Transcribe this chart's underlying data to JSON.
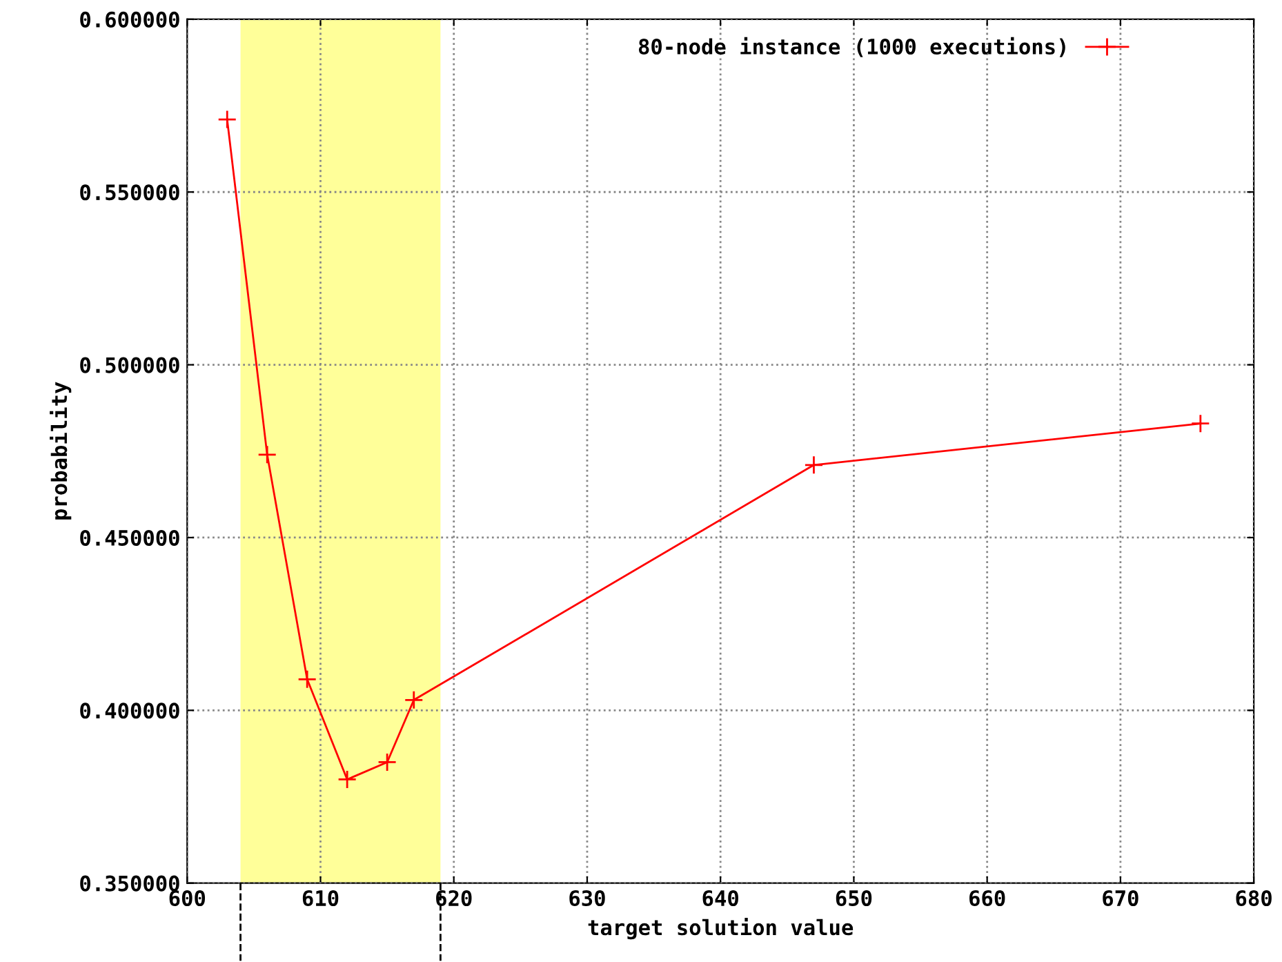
{
  "chart_data": {
    "type": "line",
    "xlabel": "target solution value",
    "ylabel": "probability",
    "series": [
      {
        "name": "80-node instance (1000 executions)",
        "color": "#ff0000",
        "x": [
          603,
          606,
          609,
          612,
          615,
          617,
          647,
          676
        ],
        "values": [
          0.571,
          0.474,
          0.409,
          0.38,
          0.385,
          0.403,
          0.471,
          0.483
        ]
      }
    ],
    "xlim": [
      600,
      680
    ],
    "xticks": [
      600,
      610,
      620,
      630,
      640,
      650,
      660,
      670,
      680
    ],
    "ylim": [
      0.35,
      0.6
    ],
    "yticks": [
      {
        "value": 0.35,
        "label": "0.350000"
      },
      {
        "value": 0.4,
        "label": "0.400000"
      },
      {
        "value": 0.45,
        "label": "0.450000"
      },
      {
        "value": 0.5,
        "label": "0.500000"
      },
      {
        "value": 0.55,
        "label": "0.550000"
      },
      {
        "value": 0.6,
        "label": "0.600000"
      }
    ],
    "bands": [
      {
        "axis": "x",
        "from": 604,
        "to": 619,
        "color": "#ffff99"
      }
    ],
    "grid": true,
    "legend": "top right",
    "marker": "cross",
    "line_style": "solid"
  }
}
